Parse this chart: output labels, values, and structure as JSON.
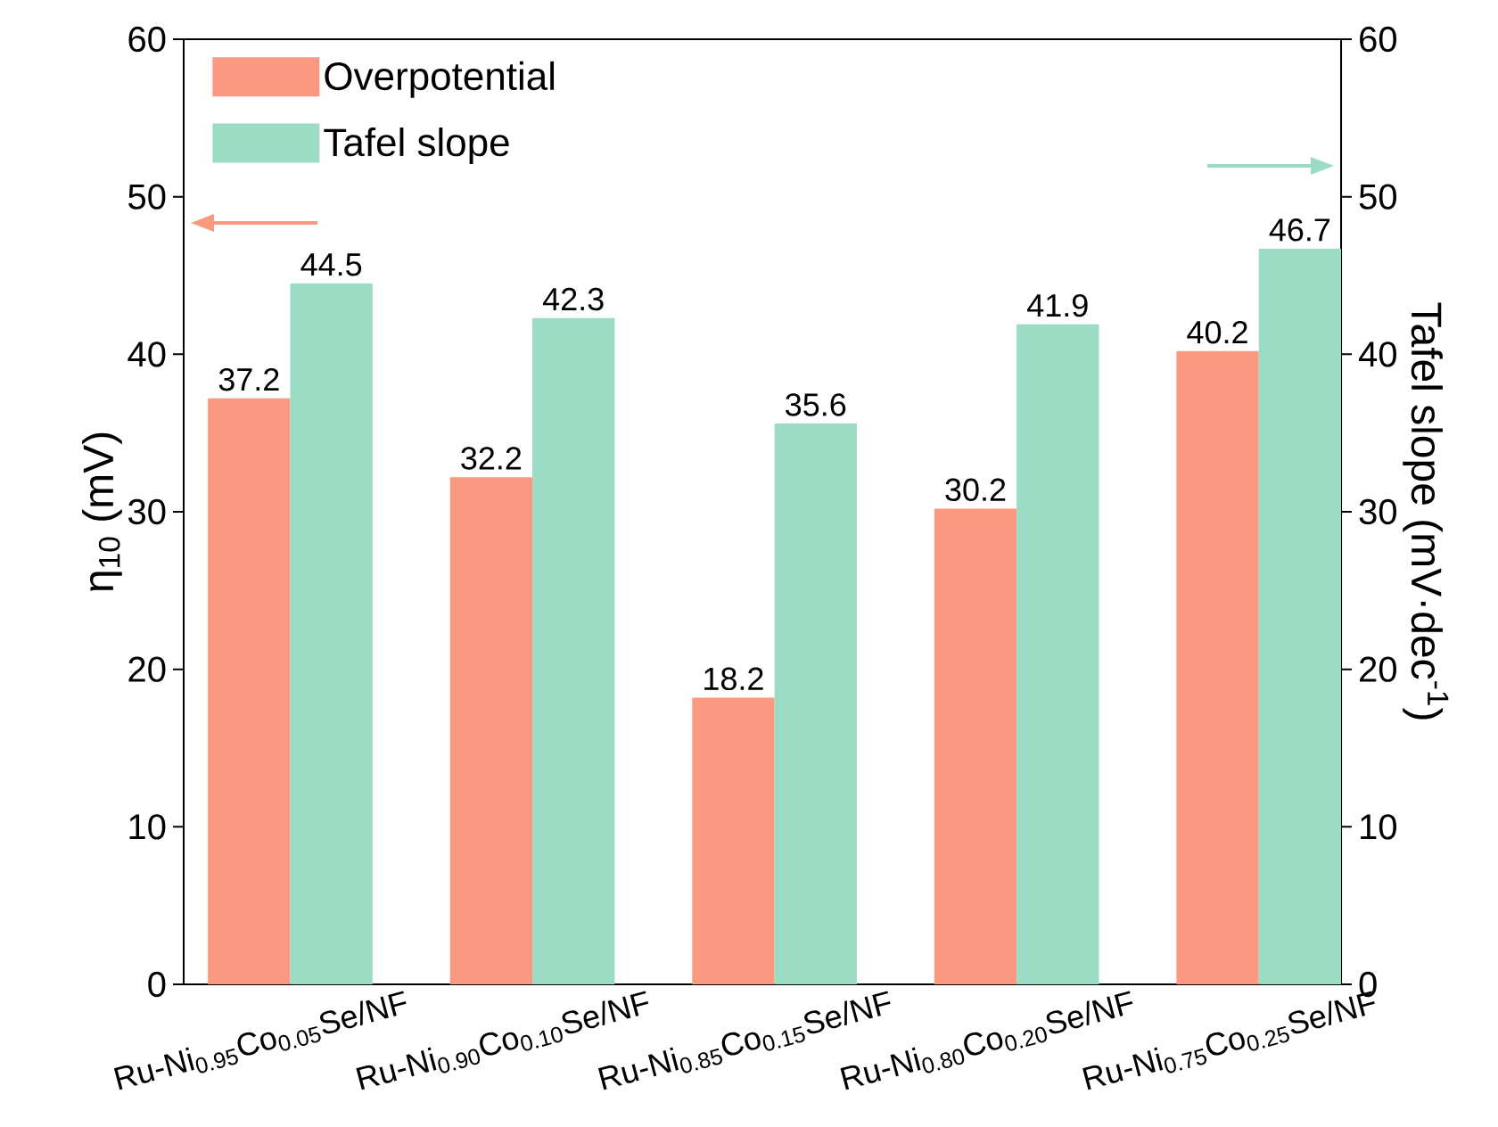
{
  "chart_data": {
    "type": "bar",
    "categories": [
      "Ru-Ni$_{0.95}$Co$_{0.05}$Se/NF",
      "Ru-Ni$_{0.90}$Co$_{0.10}$Se/NF",
      "Ru-Ni$_{0.85}$Co$_{0.15}$Se/NF",
      "Ru-Ni$_{0.80}$Co$_{0.20}$Se/NF",
      "Ru-Ni$_{0.75}$Co$_{0.25}$Se/NF"
    ],
    "series": [
      {
        "name": "Overpotential",
        "color": "#fb9880",
        "values": [
          37.2,
          32.2,
          18.2,
          30.2,
          40.2
        ]
      },
      {
        "name": "Tafel slope",
        "color": "#9cdcc4",
        "axis": "y2",
        "values": [
          44.5,
          42.3,
          35.6,
          41.9,
          46.7
        ]
      }
    ],
    "ylabel": "η$_{10}$ (mV)",
    "y2label": "Tafel slope (mV·dec$^{-1}$)",
    "ylim": [
      0,
      60
    ],
    "yticks": [
      0,
      10,
      20,
      30,
      40,
      50,
      60
    ],
    "y2lim": [
      0,
      60
    ],
    "y2ticks": [
      0,
      10,
      20,
      30,
      40,
      50,
      60
    ],
    "data_labels": true,
    "legend": "top left",
    "grid": false
  }
}
